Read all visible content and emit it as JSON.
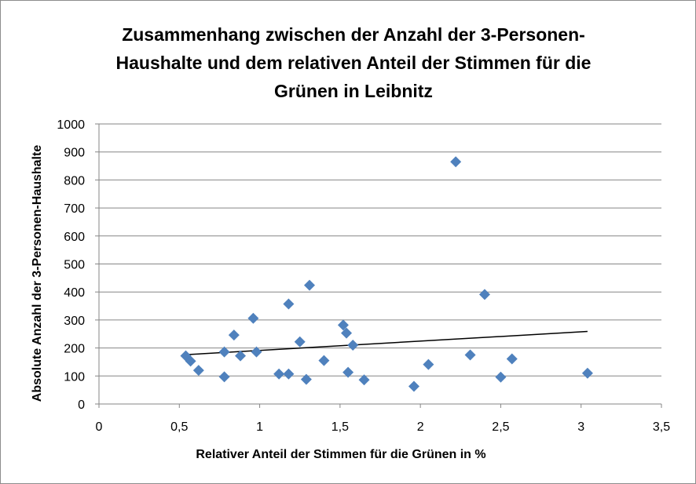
{
  "chart_data": {
    "type": "scatter",
    "title_lines": [
      "Zusammenhang zwischen der Anzahl der 3-Personen-",
      "Haushalte und dem relativen Anteil der Stimmen für die",
      "Grünen in Leibnitz"
    ],
    "xlabel": "Relativer Anteil der Stimmen für die Grünen in %",
    "ylabel": "Absolute Anzahl der 3-Personen-Haushalte",
    "xlim": [
      0,
      3.5
    ],
    "ylim": [
      0,
      1000
    ],
    "x_ticks": [
      "0",
      "0,5",
      "1",
      "1,5",
      "2",
      "2,5",
      "3",
      "3,5"
    ],
    "y_ticks": [
      "0",
      "100",
      "200",
      "300",
      "400",
      "500",
      "600",
      "700",
      "800",
      "900",
      "1000"
    ],
    "grid": "horizontal",
    "marker_color": "#4f81bd",
    "trendline_color": "#000000",
    "points": [
      {
        "x": 0.54,
        "y": 172
      },
      {
        "x": 0.57,
        "y": 153
      },
      {
        "x": 0.62,
        "y": 120
      },
      {
        "x": 0.78,
        "y": 97
      },
      {
        "x": 0.78,
        "y": 186
      },
      {
        "x": 0.84,
        "y": 246
      },
      {
        "x": 0.88,
        "y": 172
      },
      {
        "x": 0.96,
        "y": 306
      },
      {
        "x": 0.98,
        "y": 186
      },
      {
        "x": 1.12,
        "y": 107
      },
      {
        "x": 1.18,
        "y": 107
      },
      {
        "x": 1.18,
        "y": 357
      },
      {
        "x": 1.25,
        "y": 222
      },
      {
        "x": 1.29,
        "y": 88
      },
      {
        "x": 1.31,
        "y": 424
      },
      {
        "x": 1.4,
        "y": 155
      },
      {
        "x": 1.52,
        "y": 282
      },
      {
        "x": 1.54,
        "y": 253
      },
      {
        "x": 1.55,
        "y": 113
      },
      {
        "x": 1.58,
        "y": 210
      },
      {
        "x": 1.65,
        "y": 86
      },
      {
        "x": 1.96,
        "y": 63
      },
      {
        "x": 2.05,
        "y": 141
      },
      {
        "x": 2.22,
        "y": 865
      },
      {
        "x": 2.31,
        "y": 175
      },
      {
        "x": 2.4,
        "y": 391
      },
      {
        "x": 2.5,
        "y": 96
      },
      {
        "x": 2.57,
        "y": 161
      },
      {
        "x": 3.04,
        "y": 110
      }
    ],
    "trendline": {
      "x": [
        0.54,
        3.04
      ],
      "y": [
        176,
        259
      ]
    }
  }
}
